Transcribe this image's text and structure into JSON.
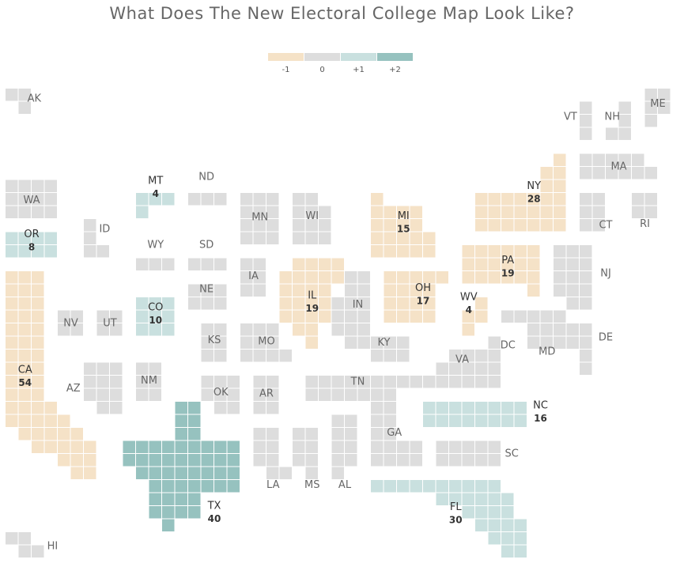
{
  "title": "What Does The New Electoral College Map Look Like?",
  "legend": [
    {
      "label": "-1",
      "color": "#f5e2c7"
    },
    {
      "label": "0",
      "color": "#dddddd"
    },
    {
      "label": "+1",
      "color": "#c9e0df"
    },
    {
      "label": "+2",
      "color": "#96c2bf"
    }
  ],
  "states": [
    {
      "abbr": "AK",
      "change": 0
    },
    {
      "abbr": "HI",
      "change": 0
    },
    {
      "abbr": "WA",
      "change": 0
    },
    {
      "abbr": "OR",
      "change": 1,
      "votes": "8"
    },
    {
      "abbr": "CA",
      "change": -1,
      "votes": "54"
    },
    {
      "abbr": "ID",
      "change": 0
    },
    {
      "abbr": "NV",
      "change": 0
    },
    {
      "abbr": "UT",
      "change": 0
    },
    {
      "abbr": "AZ",
      "change": 0
    },
    {
      "abbr": "MT",
      "change": 1,
      "votes": "4"
    },
    {
      "abbr": "WY",
      "change": 0
    },
    {
      "abbr": "CO",
      "change": 1,
      "votes": "10"
    },
    {
      "abbr": "NM",
      "change": 0
    },
    {
      "abbr": "ND",
      "change": 0
    },
    {
      "abbr": "SD",
      "change": 0
    },
    {
      "abbr": "NE",
      "change": 0
    },
    {
      "abbr": "KS",
      "change": 0
    },
    {
      "abbr": "OK",
      "change": 0
    },
    {
      "abbr": "TX",
      "change": 2,
      "votes": "40"
    },
    {
      "abbr": "MN",
      "change": 0
    },
    {
      "abbr": "IA",
      "change": 0
    },
    {
      "abbr": "MO",
      "change": 0
    },
    {
      "abbr": "AR",
      "change": 0
    },
    {
      "abbr": "LA",
      "change": 0
    },
    {
      "abbr": "WI",
      "change": 0
    },
    {
      "abbr": "IL",
      "change": -1,
      "votes": "19"
    },
    {
      "abbr": "MS",
      "change": 0
    },
    {
      "abbr": "MI",
      "change": -1,
      "votes": "15"
    },
    {
      "abbr": "IN",
      "change": 0
    },
    {
      "abbr": "KY",
      "change": 0
    },
    {
      "abbr": "TN",
      "change": 0
    },
    {
      "abbr": "AL",
      "change": 0
    },
    {
      "abbr": "OH",
      "change": -1,
      "votes": "17"
    },
    {
      "abbr": "WV",
      "change": -1,
      "votes": "4"
    },
    {
      "abbr": "VA",
      "change": 0
    },
    {
      "abbr": "NC",
      "change": 1,
      "votes": "16"
    },
    {
      "abbr": "SC",
      "change": 0
    },
    {
      "abbr": "GA",
      "change": 0
    },
    {
      "abbr": "FL",
      "change": 1,
      "votes": "30"
    },
    {
      "abbr": "PA",
      "change": -1,
      "votes": "19"
    },
    {
      "abbr": "NY",
      "change": -1,
      "votes": "28"
    },
    {
      "abbr": "NJ",
      "change": 0
    },
    {
      "abbr": "DE",
      "change": 0
    },
    {
      "abbr": "MD",
      "change": 0
    },
    {
      "abbr": "DC",
      "change": 0
    },
    {
      "abbr": "VT",
      "change": 0
    },
    {
      "abbr": "NH",
      "change": 0
    },
    {
      "abbr": "ME",
      "change": 0
    },
    {
      "abbr": "MA",
      "change": 0
    },
    {
      "abbr": "CT",
      "change": 0
    },
    {
      "abbr": "RI",
      "change": 0
    }
  ]
}
